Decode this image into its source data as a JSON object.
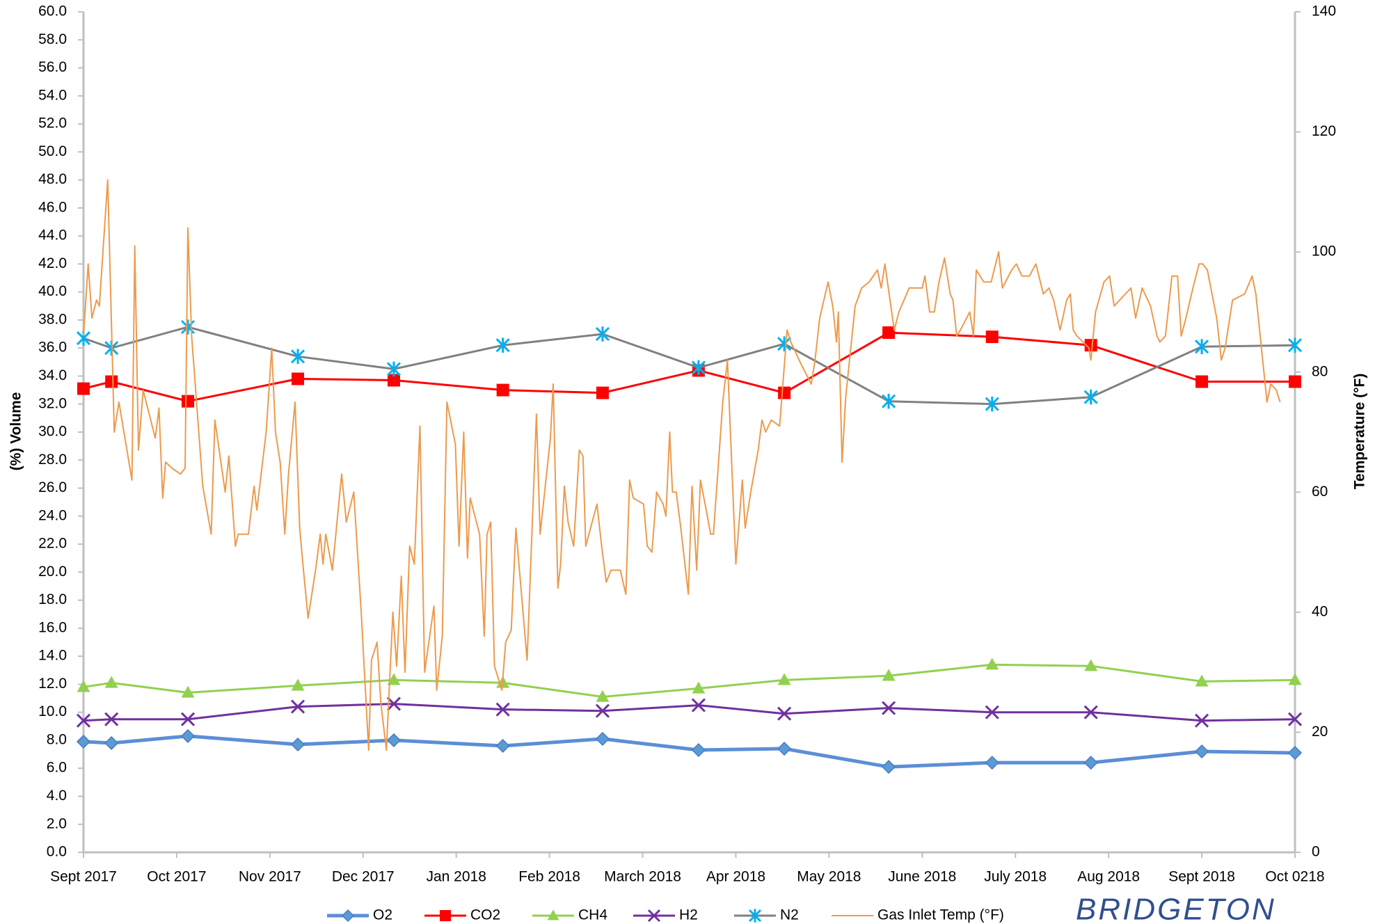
{
  "chart_data": {
    "type": "line",
    "ylabel": "(%) Volume",
    "y2label": "Temperature (°F)",
    "logo_text": "BRIDGETON",
    "xlim": [
      0,
      13
    ],
    "xticks": [
      {
        "value": 0,
        "label": "Sept 2017"
      },
      {
        "value": 1,
        "label": "Oct 2017"
      },
      {
        "value": 2,
        "label": "Nov 2017"
      },
      {
        "value": 3,
        "label": "Dec 2017"
      },
      {
        "value": 4,
        "label": "Jan 2018"
      },
      {
        "value": 5,
        "label": "Feb 2018"
      },
      {
        "value": 6,
        "label": "March 2018"
      },
      {
        "value": 7,
        "label": "Apr 2018"
      },
      {
        "value": 8,
        "label": "May 2018"
      },
      {
        "value": 9,
        "label": "June 2018"
      },
      {
        "value": 10,
        "label": "July 2018"
      },
      {
        "value": 11,
        "label": "Aug 2018"
      },
      {
        "value": 12,
        "label": "Sept 2018"
      },
      {
        "value": 13,
        "label": "Oct 0218"
      }
    ],
    "ylim": [
      0,
      60
    ],
    "yticks": [
      {
        "value": 0,
        "label": "0.0"
      },
      {
        "value": 2,
        "label": "2.0"
      },
      {
        "value": 4,
        "label": "4.0"
      },
      {
        "value": 6,
        "label": "6.0"
      },
      {
        "value": 8,
        "label": "8.0"
      },
      {
        "value": 10,
        "label": "10.0"
      },
      {
        "value": 12,
        "label": "12.0"
      },
      {
        "value": 14,
        "label": "14.0"
      },
      {
        "value": 16,
        "label": "16.0"
      },
      {
        "value": 18,
        "label": "18.0"
      },
      {
        "value": 20,
        "label": "20.0"
      },
      {
        "value": 22,
        "label": "22.0"
      },
      {
        "value": 24,
        "label": "24.0"
      },
      {
        "value": 26,
        "label": "26.0"
      },
      {
        "value": 28,
        "label": "28.0"
      },
      {
        "value": 30,
        "label": "30.0"
      },
      {
        "value": 32,
        "label": "32.0"
      },
      {
        "value": 34,
        "label": "34.0"
      },
      {
        "value": 36,
        "label": "36.0"
      },
      {
        "value": 38,
        "label": "38.0"
      },
      {
        "value": 40,
        "label": "40.0"
      },
      {
        "value": 42,
        "label": "42.0"
      },
      {
        "value": 44,
        "label": "44.0"
      },
      {
        "value": 46,
        "label": "46.0"
      },
      {
        "value": 48,
        "label": "48.0"
      },
      {
        "value": 50,
        "label": "50.0"
      },
      {
        "value": 52,
        "label": "52.0"
      },
      {
        "value": 54,
        "label": "54.0"
      },
      {
        "value": 56,
        "label": "56.0"
      },
      {
        "value": 58,
        "label": "58.0"
      },
      {
        "value": 60,
        "label": "60.0"
      }
    ],
    "y2lim": [
      0,
      140
    ],
    "y2ticks": [
      0,
      20,
      40,
      60,
      80,
      100,
      120,
      140
    ],
    "grid": false,
    "legend": "bottom",
    "x": [
      0,
      0.3,
      1.12,
      2.3,
      3.33,
      4.5,
      5.57,
      6.6,
      7.52,
      8.64,
      9.75,
      10.81,
      12.0,
      13.0
    ],
    "series": [
      {
        "name": "O2",
        "color": "#5b8ed6",
        "marker": "diamond",
        "marker_color": "#5b9bd5",
        "values": [
          7.9,
          7.8,
          8.3,
          7.7,
          8.0,
          7.6,
          8.1,
          7.3,
          7.4,
          6.1,
          6.4,
          6.4,
          7.2,
          7.1
        ]
      },
      {
        "name": "CO2",
        "color": "#ff0000",
        "marker": "square",
        "marker_color": "#ff0000",
        "values": [
          33.1,
          33.6,
          32.2,
          33.8,
          33.7,
          33.0,
          32.8,
          34.4,
          32.8,
          37.1,
          36.8,
          36.2,
          33.6,
          33.6
        ]
      },
      {
        "name": "CH4",
        "color": "#92d050",
        "marker": "triangle",
        "marker_color": "#92d050",
        "values": [
          11.8,
          12.1,
          11.4,
          11.9,
          12.3,
          12.1,
          11.1,
          11.7,
          12.3,
          12.6,
          13.4,
          13.3,
          12.2,
          12.3
        ]
      },
      {
        "name": "H2",
        "color": "#7030a0",
        "marker": "x",
        "marker_color": "#7030a0",
        "values": [
          9.4,
          9.5,
          9.5,
          10.4,
          10.6,
          10.2,
          10.1,
          10.5,
          9.9,
          10.3,
          10.0,
          10.0,
          9.4,
          9.5
        ]
      },
      {
        "name": "N2",
        "color": "#808080",
        "marker": "star",
        "marker_color": "#00b0f0",
        "values": [
          36.7,
          36.0,
          37.5,
          35.4,
          34.5,
          36.2,
          37.0,
          34.6,
          36.3,
          32.2,
          32.0,
          32.5,
          36.1,
          36.2
        ]
      },
      {
        "name": "Gas Inlet Temp (°F)",
        "color": "#ed9a4c",
        "axis": "y2",
        "x": [
          0,
          0.05,
          0.09,
          0.14,
          0.17,
          0.26,
          0.33,
          0.38,
          0.52,
          0.55,
          0.59,
          0.64,
          0.77,
          0.81,
          0.85,
          0.88,
          0.95,
          1.04,
          1.09,
          1.12,
          1.16,
          1.28,
          1.37,
          1.41,
          1.52,
          1.56,
          1.63,
          1.66,
          1.77,
          1.83,
          1.86,
          1.96,
          2.02,
          2.06,
          2.11,
          2.16,
          2.2,
          2.27,
          2.32,
          2.36,
          2.41,
          2.49,
          2.54,
          2.57,
          2.6,
          2.67,
          2.77,
          2.82,
          2.9,
          2.98,
          3.06,
          3.09,
          3.15,
          3.19,
          3.25,
          3.32,
          3.36,
          3.41,
          3.45,
          3.5,
          3.55,
          3.61,
          3.66,
          3.76,
          3.79,
          3.85,
          3.9,
          3.99,
          4.03,
          4.08,
          4.12,
          4.15,
          4.25,
          4.3,
          4.33,
          4.37,
          4.41,
          4.49,
          4.53,
          4.59,
          4.64,
          4.76,
          4.86,
          4.9,
          5.01,
          5.04,
          5.09,
          5.12,
          5.16,
          5.2,
          5.26,
          5.32,
          5.36,
          5.39,
          5.51,
          5.56,
          5.61,
          5.66,
          5.76,
          5.82,
          5.86,
          5.9,
          6.01,
          6.05,
          6.1,
          6.15,
          6.22,
          6.25,
          6.29,
          6.32,
          6.36,
          6.41,
          6.49,
          6.53,
          6.58,
          6.62,
          6.67,
          6.73,
          6.76,
          6.86,
          6.91,
          7.0,
          7.07,
          7.1,
          7.16,
          7.24,
          7.28,
          7.32,
          7.38,
          7.47,
          7.55,
          7.59,
          7.71,
          7.81,
          7.85,
          7.9,
          7.99,
          8.04,
          8.08,
          8.1,
          8.14,
          8.18,
          8.28,
          8.35,
          8.43,
          8.52,
          8.56,
          8.6,
          8.7,
          8.75,
          8.86,
          9.0,
          9.03,
          9.08,
          9.13,
          9.18,
          9.24,
          9.3,
          9.33,
          9.37,
          9.41,
          9.51,
          9.55,
          9.58,
          9.66,
          9.74,
          9.82,
          9.86,
          9.96,
          10.01,
          10.07,
          10.15,
          10.22,
          10.3,
          10.36,
          10.41,
          10.48,
          10.55,
          10.59,
          10.62,
          10.66,
          10.79,
          10.81,
          10.86,
          10.95,
          11.01,
          11.06,
          11.12,
          11.24,
          11.29,
          11.36,
          11.45,
          11.52,
          11.55,
          11.61,
          11.68,
          11.74,
          11.78,
          11.83,
          11.89,
          11.97,
          12.01,
          12.06,
          12.16,
          12.21,
          12.25,
          12.33,
          12.46,
          12.54,
          12.58,
          12.7,
          12.74,
          12.8,
          12.84
        ],
        "values": [
          86,
          98,
          89,
          92,
          91,
          112,
          70,
          75,
          62,
          101,
          67,
          77,
          69,
          74,
          59,
          65,
          64,
          63,
          64,
          104,
          86,
          61,
          53,
          72,
          60,
          66,
          51,
          53,
          53,
          61,
          57,
          70,
          84,
          70,
          65,
          53,
          63,
          75,
          54,
          47,
          39,
          47,
          53,
          48,
          53,
          47,
          63,
          55,
          60,
          40,
          17,
          32,
          35,
          25,
          17,
          40,
          31,
          46,
          30,
          51,
          48,
          71,
          30,
          41,
          27,
          36,
          75,
          68,
          51,
          70,
          49,
          59,
          53,
          36,
          53,
          55,
          31,
          27,
          35,
          37,
          54,
          32,
          73,
          53,
          69,
          78,
          44,
          48,
          61,
          55,
          51,
          67,
          66,
          51,
          58,
          51,
          45,
          47,
          47,
          43,
          62,
          59,
          58,
          51,
          50,
          60,
          58,
          56,
          70,
          60,
          60,
          54,
          43,
          61,
          47,
          62,
          58,
          53,
          53,
          75,
          82,
          48,
          62,
          54,
          60,
          67,
          72,
          70,
          72,
          71,
          87,
          85,
          81,
          78,
          82,
          89,
          95,
          91,
          85,
          90,
          65,
          76,
          91,
          94,
          95,
          97,
          94,
          98,
          87,
          90,
          94,
          94,
          96,
          90,
          90,
          95,
          99,
          93,
          92,
          86,
          87,
          90,
          86,
          97,
          95,
          95,
          100,
          94,
          97,
          98,
          96,
          96,
          98,
          93,
          94,
          92,
          87,
          92,
          93,
          87,
          86,
          84,
          82,
          90,
          95,
          96,
          91,
          92,
          94,
          89,
          94,
          91,
          86,
          85,
          86,
          96,
          96,
          86,
          89,
          93,
          98,
          98,
          97,
          89,
          82,
          84,
          92,
          93,
          96,
          93,
          75,
          78,
          77,
          75
        ]
      }
    ]
  }
}
